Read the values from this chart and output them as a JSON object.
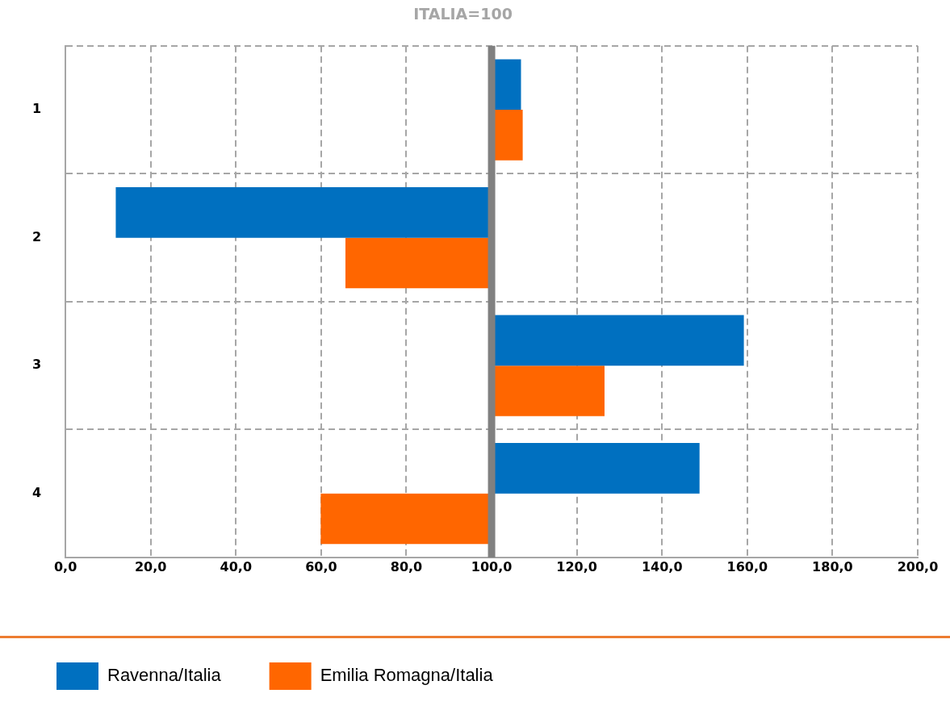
{
  "chart_data": {
    "type": "bar",
    "orientation": "horizontal",
    "title": "ITALIA=100",
    "categories": [
      "1",
      "2",
      "3",
      "4"
    ],
    "series": [
      {
        "name": "Ravenna/Italia",
        "color": "#0070c0",
        "base": [
          100,
          100,
          100,
          100
        ],
        "values": [
          6.9,
          -88.2,
          59.2,
          48.8
        ]
      },
      {
        "name": "Emilia Romagna/Italia",
        "color": "#ff6600",
        "base": [
          100,
          100,
          100,
          100
        ],
        "values": [
          7.3,
          -34.3,
          26.5,
          -40.1
        ]
      }
    ],
    "xlim": [
      0,
      200
    ],
    "xticks": [
      {
        "value": 0,
        "label": "0,0"
      },
      {
        "value": 20,
        "label": "20,0"
      },
      {
        "value": 40,
        "label": "40,0"
      },
      {
        "value": 60,
        "label": "60,0"
      },
      {
        "value": 80,
        "label": "80,0"
      },
      {
        "value": 100,
        "label": "100,0"
      },
      {
        "value": 120,
        "label": "120,0"
      },
      {
        "value": 140,
        "label": "140,0"
      },
      {
        "value": 160,
        "label": "160,0"
      },
      {
        "value": 180,
        "label": "180,0"
      },
      {
        "value": 200,
        "label": "200,0"
      }
    ],
    "ref_lines": [
      {
        "axis": "x",
        "value": 100,
        "color": "#808080"
      }
    ],
    "grid": true,
    "legend": "bottom left"
  }
}
